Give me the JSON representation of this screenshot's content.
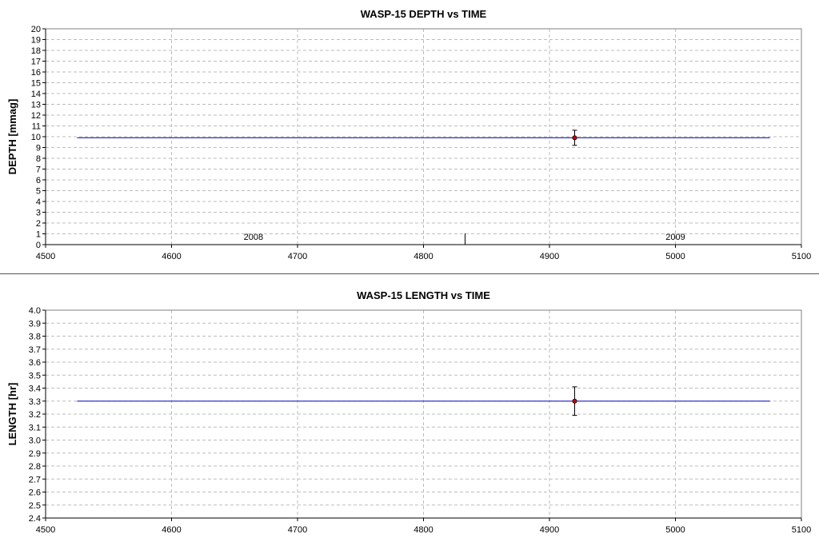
{
  "chart_data": [
    {
      "type": "scatter",
      "title": "WASP-15 DEPTH vs TIME",
      "xlabel": "",
      "ylabel": "DEPTH [mmag]",
      "xlim": [
        4500,
        5100
      ],
      "ylim": [
        0,
        20
      ],
      "xticks": [
        4500,
        4600,
        4700,
        4800,
        4900,
        5000,
        5100
      ],
      "yticks": [
        0,
        1,
        2,
        3,
        4,
        5,
        6,
        7,
        8,
        9,
        10,
        11,
        12,
        13,
        14,
        15,
        16,
        17,
        18,
        19,
        20
      ],
      "grid": true,
      "series": [
        {
          "kind": "line",
          "color": "#3333cc",
          "x": [
            4525,
            5075
          ],
          "y": [
            9.9,
            9.9
          ]
        },
        {
          "kind": "point",
          "color": "#cc0000",
          "x": [
            4920
          ],
          "y": [
            9.9
          ],
          "err_low": [
            9.2
          ],
          "err_high": [
            10.6
          ]
        }
      ],
      "annotations": [
        {
          "text": "2008",
          "x": 4665
        },
        {
          "text": "2009",
          "x": 5000
        }
      ],
      "year_marker_x": 4833
    },
    {
      "type": "scatter",
      "title": "WASP-15 LENGTH vs TIME",
      "xlabel": "",
      "ylabel": "LENGTH [hr]",
      "xlim": [
        4500,
        5100
      ],
      "ylim": [
        2.4,
        4.0
      ],
      "xticks": [
        4500,
        4600,
        4700,
        4800,
        4900,
        5000,
        5100
      ],
      "yticks": [
        "2.4",
        "2.5",
        "2.6",
        "2.7",
        "2.8",
        "2.9",
        "3.0",
        "3.1",
        "3.2",
        "3.3",
        "3.4",
        "3.5",
        "3.6",
        "3.7",
        "3.8",
        "3.9",
        "4.0"
      ],
      "grid": true,
      "series": [
        {
          "kind": "line",
          "color": "#3333cc",
          "x": [
            4525,
            5075
          ],
          "y": [
            3.3,
            3.3
          ]
        },
        {
          "kind": "point",
          "color": "#cc0000",
          "x": [
            4920
          ],
          "y": [
            3.3
          ],
          "err_low": [
            3.19
          ],
          "err_high": [
            3.41
          ]
        }
      ],
      "annotations": []
    }
  ]
}
